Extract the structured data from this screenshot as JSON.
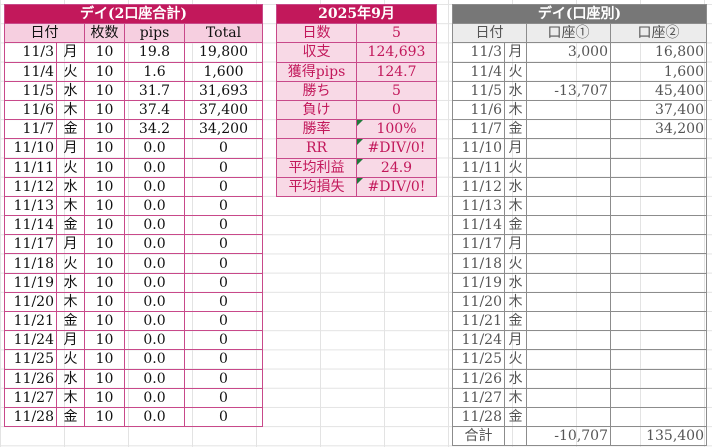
{
  "left": {
    "title": "デイ(2口座合計)",
    "headers": [
      "日付",
      "枚数",
      "pips",
      "Total"
    ],
    "rows": [
      [
        "11/3",
        "月",
        "10",
        "19.8",
        "19,800"
      ],
      [
        "11/4",
        "火",
        "10",
        "1.6",
        "1,600"
      ],
      [
        "11/5",
        "水",
        "10",
        "31.7",
        "31,693"
      ],
      [
        "11/6",
        "木",
        "10",
        "37.4",
        "37,400"
      ],
      [
        "11/7",
        "金",
        "10",
        "34.2",
        "34,200"
      ],
      [
        "11/10",
        "月",
        "10",
        "0.0",
        "0"
      ],
      [
        "11/11",
        "火",
        "10",
        "0.0",
        "0"
      ],
      [
        "11/12",
        "水",
        "10",
        "0.0",
        "0"
      ],
      [
        "11/13",
        "木",
        "10",
        "0.0",
        "0"
      ],
      [
        "11/14",
        "金",
        "10",
        "0.0",
        "0"
      ],
      [
        "11/17",
        "月",
        "10",
        "0.0",
        "0"
      ],
      [
        "11/18",
        "火",
        "10",
        "0.0",
        "0"
      ],
      [
        "11/19",
        "水",
        "10",
        "0.0",
        "0"
      ],
      [
        "11/20",
        "木",
        "10",
        "0.0",
        "0"
      ],
      [
        "11/21",
        "金",
        "10",
        "0.0",
        "0"
      ],
      [
        "11/24",
        "月",
        "10",
        "0.0",
        "0"
      ],
      [
        "11/25",
        "火",
        "10",
        "0.0",
        "0"
      ],
      [
        "11/26",
        "水",
        "10",
        "0.0",
        "0"
      ],
      [
        "11/27",
        "木",
        "10",
        "0.0",
        "0"
      ],
      [
        "11/28",
        "金",
        "10",
        "0.0",
        "0"
      ]
    ]
  },
  "summary": {
    "title": "2025年9月",
    "rows": [
      {
        "label": "日数",
        "value": "5",
        "note": false
      },
      {
        "label": "収支",
        "value": "124,693",
        "note": false
      },
      {
        "label": "獲得pips",
        "value": "124.7",
        "note": false
      },
      {
        "label": "勝ち",
        "value": "5",
        "note": false
      },
      {
        "label": "負け",
        "value": "0",
        "note": false
      },
      {
        "label": "勝率",
        "value": "100%",
        "note": true
      },
      {
        "label": "RR",
        "value": "#DIV/0!",
        "note": true
      },
      {
        "label": "平均利益",
        "value": "24.9",
        "note": true
      },
      {
        "label": "平均損失",
        "value": "#DIV/0!",
        "note": true
      }
    ]
  },
  "right": {
    "title": "デイ(口座別)",
    "headers": [
      "日付",
      "口座①",
      "口座②"
    ],
    "rows": [
      [
        "11/3",
        "月",
        "3,000",
        "16,800"
      ],
      [
        "11/4",
        "火",
        "",
        "1,600"
      ],
      [
        "11/5",
        "水",
        "-13,707",
        "45,400"
      ],
      [
        "11/6",
        "木",
        "",
        "37,400"
      ],
      [
        "11/7",
        "金",
        "",
        "34,200"
      ],
      [
        "11/10",
        "月",
        "",
        ""
      ],
      [
        "11/11",
        "火",
        "",
        ""
      ],
      [
        "11/12",
        "水",
        "",
        ""
      ],
      [
        "11/13",
        "木",
        "",
        ""
      ],
      [
        "11/14",
        "金",
        "",
        ""
      ],
      [
        "11/17",
        "月",
        "",
        ""
      ],
      [
        "11/18",
        "火",
        "",
        ""
      ],
      [
        "11/19",
        "水",
        "",
        ""
      ],
      [
        "11/20",
        "木",
        "",
        ""
      ],
      [
        "11/21",
        "金",
        "",
        ""
      ],
      [
        "11/24",
        "月",
        "",
        ""
      ],
      [
        "11/25",
        "火",
        "",
        ""
      ],
      [
        "11/26",
        "水",
        "",
        ""
      ],
      [
        "11/27",
        "木",
        "",
        ""
      ],
      [
        "11/28",
        "金",
        "",
        ""
      ]
    ],
    "total_label": "合計",
    "total_1": "-10,707",
    "total_2": "135,400"
  }
}
